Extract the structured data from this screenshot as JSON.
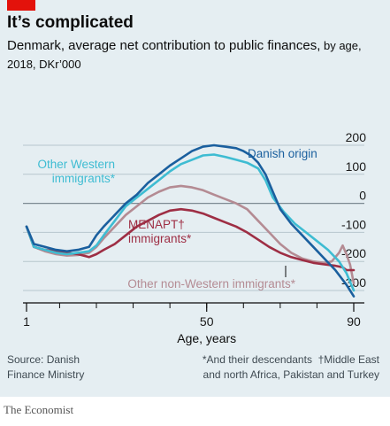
{
  "header": {
    "title": "It’s complicated",
    "subtitle_main": "Denmark, average net contribution to public finances,",
    "subtitle_small": " by age, 2018, DKr’000"
  },
  "chart_data": {
    "type": "line",
    "xlabel": "Age, years",
    "ylabel": "",
    "xlim": [
      1,
      90
    ],
    "ylim": [
      -300,
      200
    ],
    "x_ticks": [
      1,
      50,
      90
    ],
    "y_ticks": [
      200,
      100,
      0,
      -100,
      -200,
      -300
    ],
    "grid": true,
    "series": [
      {
        "name": "Danish origin",
        "color": "#1a5f9e",
        "points": [
          [
            1,
            -80
          ],
          [
            3,
            -140
          ],
          [
            6,
            -150
          ],
          [
            9,
            -160
          ],
          [
            12,
            -165
          ],
          [
            15,
            -160
          ],
          [
            18,
            -150
          ],
          [
            20,
            -110
          ],
          [
            22,
            -80
          ],
          [
            25,
            -40
          ],
          [
            28,
            0
          ],
          [
            31,
            30
          ],
          [
            34,
            70
          ],
          [
            37,
            100
          ],
          [
            40,
            130
          ],
          [
            43,
            155
          ],
          [
            46,
            180
          ],
          [
            49,
            195
          ],
          [
            52,
            200
          ],
          [
            55,
            195
          ],
          [
            58,
            190
          ],
          [
            60,
            180
          ],
          [
            62,
            165
          ],
          [
            64,
            140
          ],
          [
            66,
            100
          ],
          [
            68,
            40
          ],
          [
            70,
            -20
          ],
          [
            73,
            -70
          ],
          [
            76,
            -110
          ],
          [
            79,
            -150
          ],
          [
            82,
            -190
          ],
          [
            85,
            -230
          ],
          [
            88,
            -280
          ],
          [
            90,
            -320
          ]
        ]
      },
      {
        "name": "Other Western immigrants",
        "nameLines": [
          "Other Western",
          "immigrants*"
        ],
        "color": "#3ebcd2",
        "points": [
          [
            1,
            -80
          ],
          [
            3,
            -150
          ],
          [
            6,
            -160
          ],
          [
            9,
            -170
          ],
          [
            12,
            -175
          ],
          [
            15,
            -170
          ],
          [
            18,
            -165
          ],
          [
            20,
            -145
          ],
          [
            22,
            -110
          ],
          [
            25,
            -60
          ],
          [
            28,
            -10
          ],
          [
            31,
            20
          ],
          [
            34,
            50
          ],
          [
            37,
            80
          ],
          [
            40,
            110
          ],
          [
            43,
            135
          ],
          [
            46,
            150
          ],
          [
            49,
            165
          ],
          [
            52,
            168
          ],
          [
            55,
            160
          ],
          [
            58,
            150
          ],
          [
            61,
            140
          ],
          [
            64,
            120
          ],
          [
            66,
            80
          ],
          [
            68,
            20
          ],
          [
            71,
            -30
          ],
          [
            74,
            -70
          ],
          [
            77,
            -100
          ],
          [
            80,
            -130
          ],
          [
            83,
            -160
          ],
          [
            86,
            -200
          ],
          [
            88,
            -240
          ],
          [
            90,
            -300
          ]
        ]
      },
      {
        "name": "Other non-Western immigrants",
        "nameLines": [
          "Other non-Western immigrants*"
        ],
        "color": "#b48b93",
        "points": [
          [
            1,
            -80
          ],
          [
            3,
            -150
          ],
          [
            6,
            -165
          ],
          [
            9,
            -175
          ],
          [
            12,
            -180
          ],
          [
            15,
            -178
          ],
          [
            18,
            -170
          ],
          [
            20,
            -150
          ],
          [
            22,
            -120
          ],
          [
            25,
            -80
          ],
          [
            28,
            -40
          ],
          [
            31,
            -10
          ],
          [
            34,
            20
          ],
          [
            37,
            40
          ],
          [
            40,
            55
          ],
          [
            43,
            60
          ],
          [
            46,
            55
          ],
          [
            49,
            45
          ],
          [
            52,
            30
          ],
          [
            55,
            15
          ],
          [
            58,
            0
          ],
          [
            61,
            -20
          ],
          [
            64,
            -60
          ],
          [
            67,
            -100
          ],
          [
            70,
            -140
          ],
          [
            73,
            -170
          ],
          [
            76,
            -190
          ],
          [
            79,
            -200
          ],
          [
            82,
            -205
          ],
          [
            84,
            -200
          ],
          [
            86,
            -170
          ],
          [
            87,
            -145
          ],
          [
            88,
            -175
          ],
          [
            89,
            -210
          ],
          [
            90,
            -275
          ]
        ]
      },
      {
        "name": "MENAPT immigrants",
        "nameLines": [
          "MENAPT†",
          "immigrants*"
        ],
        "color": "#9e2e44",
        "points": [
          [
            1,
            -80
          ],
          [
            3,
            -150
          ],
          [
            6,
            -160
          ],
          [
            9,
            -165
          ],
          [
            12,
            -170
          ],
          [
            15,
            -175
          ],
          [
            18,
            -185
          ],
          [
            20,
            -175
          ],
          [
            22,
            -160
          ],
          [
            25,
            -140
          ],
          [
            28,
            -110
          ],
          [
            31,
            -80
          ],
          [
            34,
            -60
          ],
          [
            37,
            -40
          ],
          [
            40,
            -25
          ],
          [
            43,
            -20
          ],
          [
            46,
            -25
          ],
          [
            49,
            -35
          ],
          [
            52,
            -50
          ],
          [
            55,
            -65
          ],
          [
            58,
            -80
          ],
          [
            61,
            -100
          ],
          [
            64,
            -125
          ],
          [
            67,
            -150
          ],
          [
            70,
            -170
          ],
          [
            73,
            -185
          ],
          [
            76,
            -195
          ],
          [
            79,
            -205
          ],
          [
            82,
            -210
          ],
          [
            85,
            -215
          ],
          [
            87,
            -220
          ],
          [
            88,
            -230
          ],
          [
            90,
            -230
          ]
        ]
      }
    ]
  },
  "footer": {
    "source": "Source: Danish\nFinance Ministry",
    "note_1": "*And their descendants",
    "note_2": "†Middle East",
    "note_3": "and north Africa, Pakistan and Turkey"
  },
  "brand": "The Economist"
}
